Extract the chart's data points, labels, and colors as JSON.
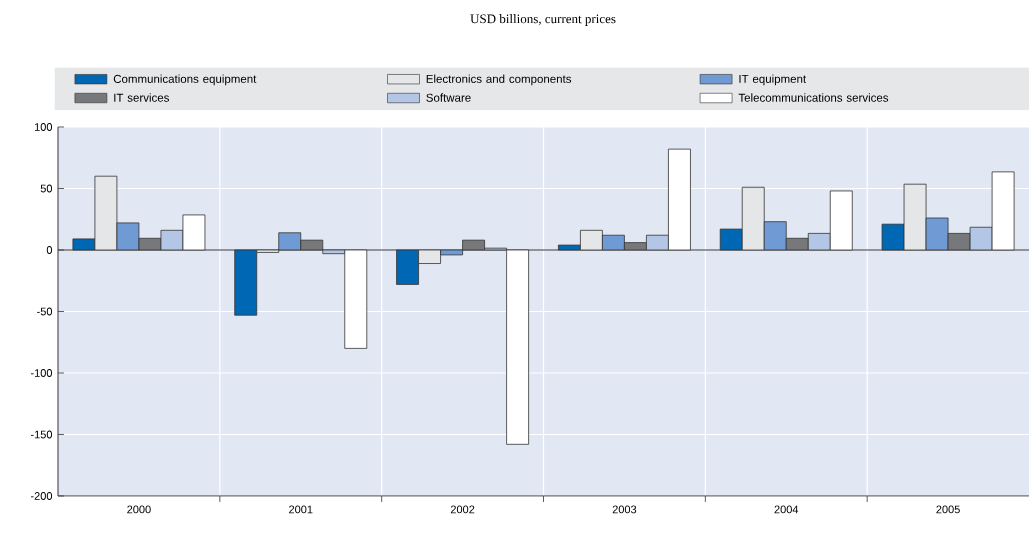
{
  "chart_data": {
    "type": "bar",
    "title": "USD billions, current prices",
    "categories": [
      "2000",
      "2001",
      "2002",
      "2003",
      "2004",
      "2005"
    ],
    "series": [
      {
        "name": "Communications equipment",
        "color": "#0067b4",
        "values": [
          9,
          -53,
          -28,
          4,
          17,
          21
        ]
      },
      {
        "name": "Electronics and components",
        "color": "#e5e6e8",
        "values": [
          60,
          -2,
          -11,
          16,
          51,
          53.5
        ]
      },
      {
        "name": "IT equipment",
        "color": "#6f9ad3",
        "values": [
          22,
          14,
          -4,
          12,
          23,
          26
        ]
      },
      {
        "name": "IT services",
        "color": "#76787b",
        "values": [
          9.5,
          8,
          8,
          6,
          9.5,
          13.5
        ]
      },
      {
        "name": "Software",
        "color": "#b3c6e6",
        "values": [
          16,
          -3,
          1.5,
          12,
          13.5,
          18.5
        ]
      },
      {
        "name": "Telecommunications services",
        "color": "#ffffff",
        "values": [
          28.5,
          -80,
          -158,
          82,
          48,
          63.5
        ]
      }
    ],
    "ylim": [
      -200,
      100
    ],
    "yticks": [
      -200,
      -150,
      -100,
      -50,
      0,
      50,
      100
    ],
    "grid": true,
    "legend": "top"
  }
}
